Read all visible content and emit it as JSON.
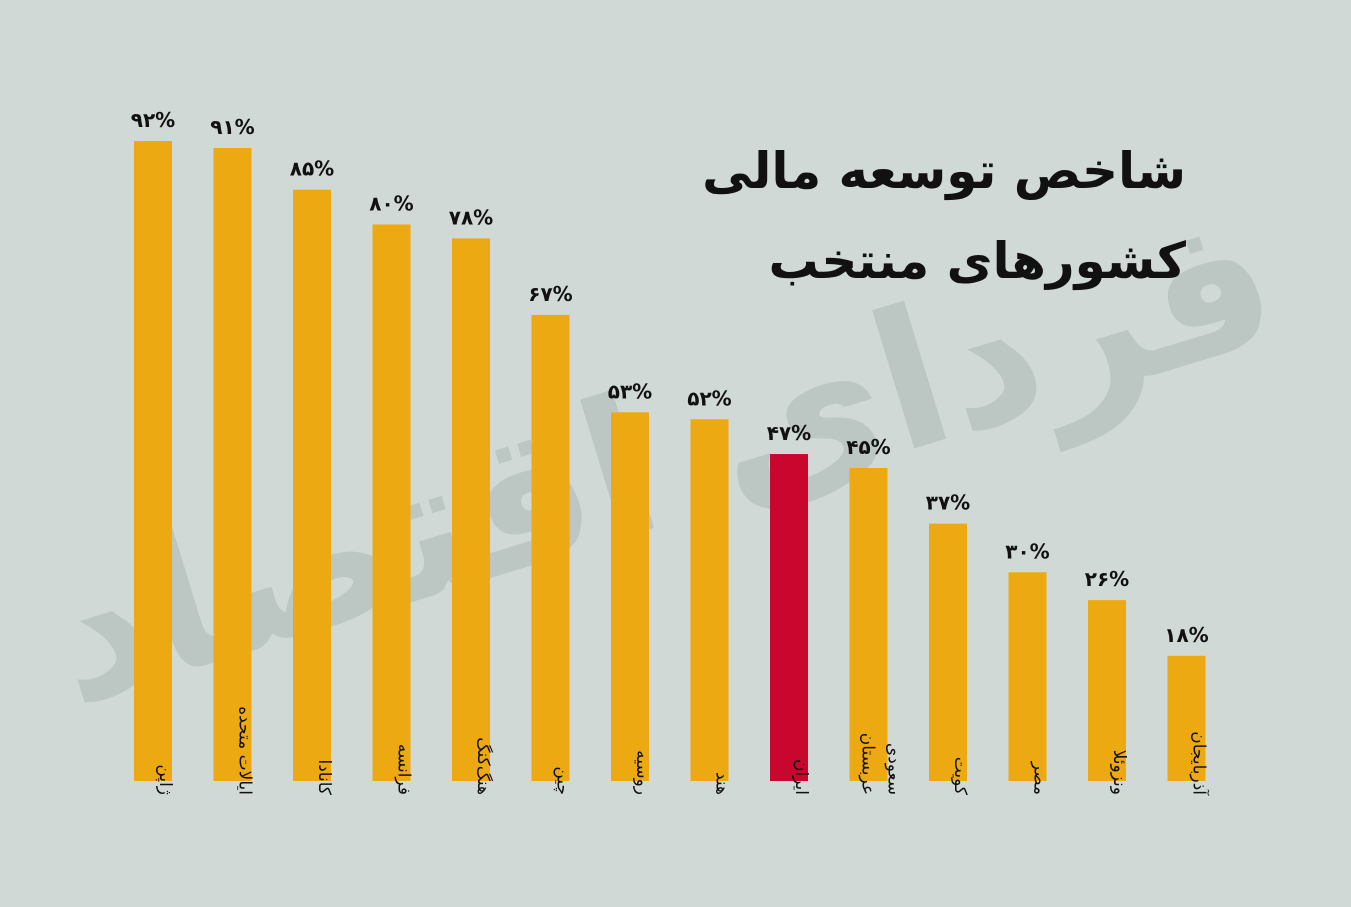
{
  "title_lines": [
    "شاخص توسعه مالی",
    "کشورهای منتخب"
  ],
  "watermark": "فردای اقتصاد",
  "colors": {
    "background": "#d1d9d6",
    "bar": "#eda911",
    "highlight": "#c8062e",
    "text": "#111111",
    "watermark": "#bcc6c2"
  },
  "chart_data": {
    "type": "bar",
    "title": "شاخص توسعه مالی کشورهای منتخب",
    "categories": [
      "ژاپن",
      "ایالات متحده",
      "کانادا",
      "فرانسه",
      "هنگ‌کنگ",
      "چین",
      "روسیه",
      "هند",
      "ایران",
      "عربستان سعودی",
      "کویت",
      "مصر",
      "ونزوئلا",
      "آذربایجان"
    ],
    "category_lines": [
      [
        "ژاپن"
      ],
      [
        "ایالات متحده"
      ],
      [
        "کانادا"
      ],
      [
        "فرانسه"
      ],
      [
        "هنگ‌کنگ"
      ],
      [
        "چین"
      ],
      [
        "روسیه"
      ],
      [
        "هند"
      ],
      [
        "ایران"
      ],
      [
        "عربستان",
        "سعودی"
      ],
      [
        "کویت"
      ],
      [
        "مصر"
      ],
      [
        "ونزوئلا"
      ],
      [
        "آذربایجان"
      ]
    ],
    "values": [
      92,
      91,
      85,
      80,
      78,
      67,
      53,
      52,
      47,
      45,
      37,
      30,
      26,
      18
    ],
    "value_labels": [
      "۹۲%",
      "۹۱%",
      "۸۵%",
      "۸۰%",
      "۷۸%",
      "۶۷%",
      "۵۳%",
      "۵۲%",
      "۴۷%",
      "۴۵%",
      "۳۷%",
      "۳۰%",
      "۲۶%",
      "۱۸%"
    ],
    "highlight_category": "ایران",
    "ylim": [
      0,
      100
    ],
    "xlabel": "",
    "ylabel": "",
    "grid": false,
    "legend": "none"
  }
}
